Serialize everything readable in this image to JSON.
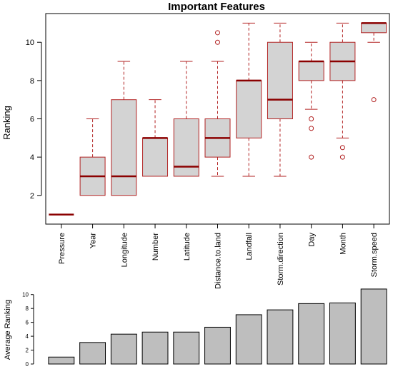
{
  "chart_data": [
    {
      "type": "box",
      "title": "Important Features",
      "ylabel": "Ranking",
      "xlabel": "",
      "ylim": [
        0.5,
        11.5
      ],
      "yticks": [
        2,
        4,
        6,
        8,
        10
      ],
      "categories": [
        "Pressure",
        "Year",
        "Longitude",
        "Number",
        "Latitude",
        "Distance.to.land",
        "Landfall",
        "Storm.direction",
        "Day",
        "Month",
        "Storm.speed"
      ],
      "boxes": [
        {
          "name": "Pressure",
          "whislo": 1,
          "q1": 1,
          "med": 1,
          "q3": 1,
          "whishi": 1,
          "fliers": []
        },
        {
          "name": "Year",
          "whislo": 2,
          "q1": 2,
          "med": 3,
          "q3": 4,
          "whishi": 6,
          "fliers": []
        },
        {
          "name": "Longitude",
          "whislo": 2,
          "q1": 2,
          "med": 3,
          "q3": 7,
          "whishi": 9,
          "fliers": []
        },
        {
          "name": "Number",
          "whislo": 3,
          "q1": 3,
          "med": 5,
          "q3": 5,
          "whishi": 7,
          "fliers": []
        },
        {
          "name": "Latitude",
          "whislo": 3,
          "q1": 3,
          "med": 3.5,
          "q3": 6,
          "whishi": 9,
          "fliers": []
        },
        {
          "name": "Distance.to.land",
          "whislo": 3,
          "q1": 4,
          "med": 5,
          "q3": 6,
          "whishi": 9,
          "fliers": [
            10,
            10.5
          ]
        },
        {
          "name": "Landfall",
          "whislo": 3,
          "q1": 5,
          "med": 8,
          "q3": 8,
          "whishi": 11,
          "fliers": []
        },
        {
          "name": "Storm.direction",
          "whislo": 3,
          "q1": 6,
          "med": 7,
          "q3": 10,
          "whishi": 11,
          "fliers": []
        },
        {
          "name": "Day",
          "whislo": 6.5,
          "q1": 8,
          "med": 9,
          "q3": 9,
          "whishi": 10,
          "fliers": [
            6,
            5.5,
            4
          ]
        },
        {
          "name": "Month",
          "whislo": 5,
          "q1": 8,
          "med": 9,
          "q3": 10,
          "whishi": 11,
          "fliers": [
            4.5,
            4
          ]
        },
        {
          "name": "Storm.speed",
          "whislo": 10,
          "q1": 10.5,
          "med": 11,
          "q3": 11,
          "whishi": 11,
          "fliers": [
            7
          ]
        }
      ],
      "colors": {
        "box_fill": "#d3d3d3",
        "box_stroke": "#b22222",
        "median": "#8b0000"
      }
    },
    {
      "type": "bar",
      "title": "",
      "ylabel": "Average Ranking",
      "xlabel": "",
      "ylim": [
        0,
        11
      ],
      "yticks": [
        0,
        2,
        4,
        6,
        8,
        10
      ],
      "categories": [
        "Pressure",
        "Year",
        "Longitude",
        "Number",
        "Latitude",
        "Distance.to.land",
        "Landfall",
        "Storm.direction",
        "Day",
        "Month",
        "Storm.speed"
      ],
      "values": [
        1.0,
        3.1,
        4.3,
        4.6,
        4.6,
        5.3,
        7.1,
        7.8,
        8.7,
        8.8,
        10.8
      ],
      "colors": {
        "bar_fill": "#bebebe",
        "bar_stroke": "#000000"
      }
    }
  ]
}
